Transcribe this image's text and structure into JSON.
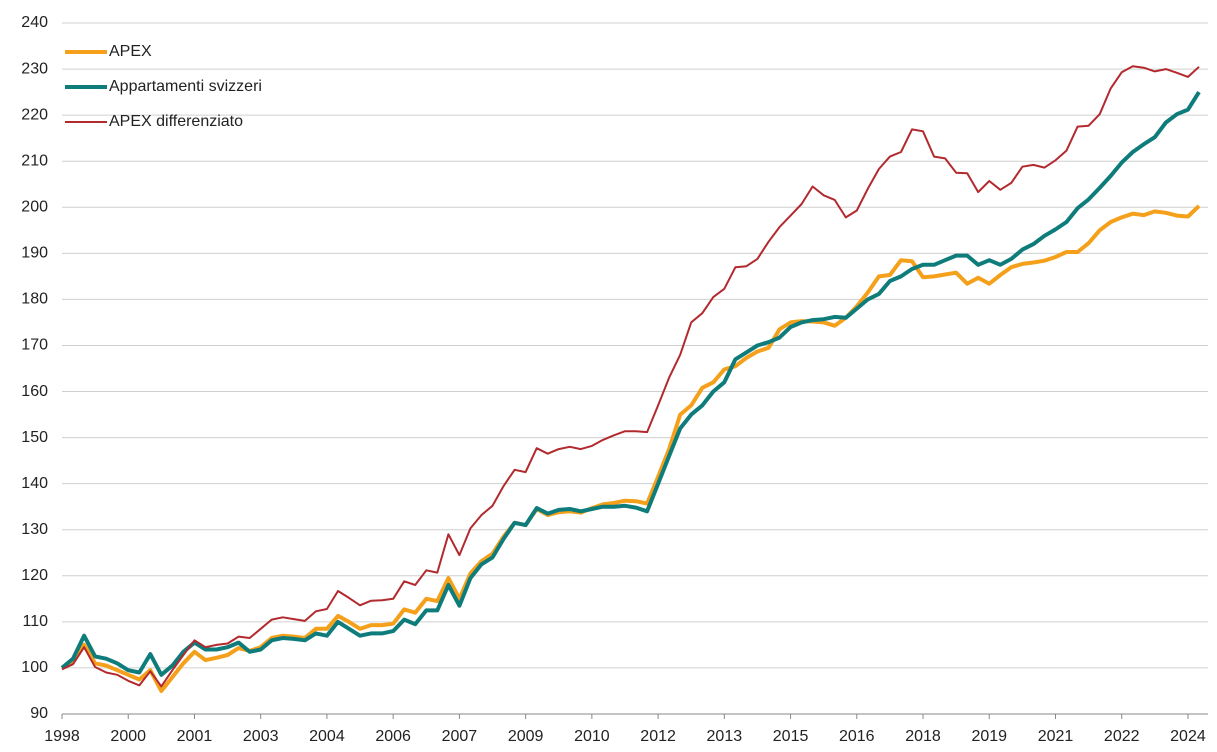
{
  "chart_data": {
    "type": "line",
    "categories": [
      "1998",
      null,
      null,
      null,
      null,
      null,
      "2000",
      null,
      null,
      null,
      null,
      null,
      "2001",
      null,
      null,
      null,
      null,
      null,
      "2003",
      null,
      null,
      null,
      null,
      null,
      "2004",
      null,
      null,
      null,
      null,
      null,
      "2006",
      null,
      null,
      null,
      null,
      null,
      "2007",
      null,
      null,
      null,
      null,
      null,
      "2009",
      null,
      null,
      null,
      null,
      null,
      "2010",
      null,
      null,
      null,
      null,
      null,
      "2012",
      null,
      null,
      null,
      null,
      null,
      "2013",
      null,
      null,
      null,
      null,
      null,
      "2015",
      null,
      null,
      null,
      null,
      null,
      "2016",
      null,
      null,
      null,
      null,
      null,
      "2018",
      null,
      null,
      null,
      null,
      null,
      "2019",
      null,
      null,
      null,
      null,
      null,
      "2021",
      null,
      null,
      null,
      null,
      null,
      "2022",
      null,
      null,
      null,
      null,
      null,
      "2024",
      null
    ],
    "series": [
      {
        "name": "APEX",
        "color": "#f5a01a",
        "values": [
          100,
          101.5,
          105,
          101,
          100.5,
          99.5,
          98.5,
          97.5,
          99.5,
          95,
          98,
          101,
          103.5,
          101.7,
          102.2,
          102.8,
          104.3,
          103.7,
          104.5,
          106.5,
          107,
          106.8,
          106.5,
          108.5,
          108.5,
          111.3,
          110,
          108.5,
          109.3,
          109.3,
          109.6,
          112.7,
          112,
          115,
          114.5,
          119.5,
          115,
          120.5,
          123.2,
          124.8,
          128.5,
          131.5,
          131,
          134.5,
          133.2,
          133.8,
          134,
          133.7,
          134.7,
          135.5,
          135.8,
          136.3,
          136.2,
          135.7,
          141.5,
          147.5,
          155,
          157,
          160.8,
          162,
          164.8,
          165.5,
          167.3,
          168.7,
          169.5,
          173.5,
          175,
          175.3,
          175.2,
          175,
          174.3,
          176,
          178.5,
          181.5,
          185,
          185.3,
          188.5,
          188.3,
          184.8,
          185,
          185.4,
          185.8,
          183.4,
          184.7,
          183.4,
          185.3,
          187,
          187.7,
          188,
          188.4,
          189.2,
          190.3,
          190.3,
          192.2,
          195,
          196.8,
          197.8,
          198.6,
          198.3,
          199.1,
          198.8,
          198.2,
          198,
          200.3
        ]
      },
      {
        "name": "Appartamenti svizzeri",
        "color": "#0e7c7b",
        "values": [
          100,
          102,
          107,
          102.5,
          102,
          101,
          99.5,
          99,
          103,
          98.5,
          100.5,
          103.5,
          105.5,
          104,
          104,
          104.5,
          105.5,
          103.5,
          104,
          106,
          106.5,
          106.3,
          106,
          107.5,
          107,
          110,
          108.5,
          107,
          107.5,
          107.5,
          108,
          110.5,
          109.5,
          112.5,
          112.5,
          118,
          113.5,
          119.5,
          122.5,
          124,
          128,
          131.5,
          131,
          134.7,
          133.5,
          134.3,
          134.5,
          134,
          134.5,
          135,
          135,
          135.2,
          134.8,
          134,
          140,
          146,
          152,
          155,
          157,
          160,
          162,
          167,
          168.5,
          170,
          170.7,
          171.7,
          174,
          175,
          175.5,
          175.7,
          176.2,
          176,
          178,
          180,
          181.2,
          184,
          185,
          186.6,
          187.5,
          187.5,
          188.5,
          189.5,
          189.5,
          187.5,
          188.5,
          187.5,
          188.8,
          190.8,
          192,
          193.8,
          195.2,
          196.8,
          199.8,
          201.7,
          204.2,
          206.8,
          209.7,
          212,
          213.7,
          215.2,
          218.4,
          220.2,
          221.2,
          225
        ]
      },
      {
        "name": "APEX differenziato",
        "color": "#b22a2e",
        "values": [
          99.7,
          100.8,
          104.5,
          100.2,
          99,
          98.5,
          97.2,
          96.2,
          99.3,
          96,
          99.5,
          102.8,
          106,
          104.5,
          105,
          105.3,
          106.8,
          106.5,
          108.5,
          110.5,
          111,
          110.6,
          110.2,
          112.3,
          112.8,
          116.7,
          115.2,
          113.6,
          114.6,
          114.7,
          115,
          118.8,
          118,
          121.2,
          120.7,
          129,
          124.5,
          130.3,
          133.2,
          135.2,
          139.5,
          143,
          142.5,
          147.7,
          146.5,
          147.5,
          148,
          147.5,
          148.2,
          149.5,
          150.5,
          151.4,
          151.4,
          151.2,
          157,
          163,
          168,
          175,
          177,
          180.5,
          182.3,
          187,
          187.2,
          188.8,
          192.5,
          195.7,
          198.2,
          200.7,
          204.5,
          202.6,
          201.6,
          197.8,
          199.3,
          204,
          208.3,
          211,
          212,
          216.9,
          216.5,
          211,
          210.6,
          207.5,
          207.4,
          203.3,
          205.7,
          203.8,
          205.3,
          208.8,
          209.2,
          208.6,
          210.2,
          212.3,
          217.5,
          217.7,
          220.2,
          225.8,
          229.3,
          230.6,
          230.3,
          229.5,
          230,
          229.2,
          228.3,
          230.5
        ]
      }
    ],
    "ylim": [
      90,
      240
    ],
    "yticks": [
      90,
      100,
      110,
      120,
      130,
      140,
      150,
      160,
      170,
      180,
      190,
      200,
      210,
      220,
      230,
      240
    ],
    "grid": true,
    "legend": "upper left"
  }
}
